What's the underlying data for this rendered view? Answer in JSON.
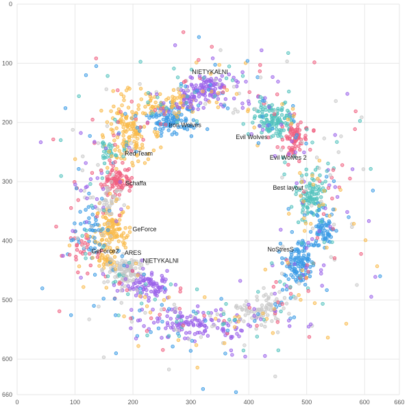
{
  "chart_data": {
    "type": "scatter",
    "title": "",
    "xlabel": "",
    "ylabel": "",
    "xlim": [
      0,
      660
    ],
    "ylim": [
      0,
      660
    ],
    "y_inverted": true,
    "grid": true,
    "x_ticks": [
      "0",
      "100",
      "200",
      "300",
      "400",
      "500",
      "600",
      "660"
    ],
    "y_ticks": [
      "0",
      "100",
      "200",
      "300",
      "400",
      "500",
      "600",
      "660"
    ],
    "colors": {
      "blue": "#3b9be5",
      "teal": "#52c2bd",
      "pink": "#f06080",
      "orange": "#f9bb4d",
      "purple": "#9b63ea",
      "gray": "#c9c9c9"
    },
    "clusters": [
      {
        "label": "NIETYKALNI",
        "color": "purple",
        "x": 330,
        "y": 140,
        "sx": 22,
        "sy": 10,
        "n": 90,
        "label_x": 333,
        "label_y": 118
      },
      {
        "label": "Iron Wolves",
        "color": "blue",
        "x": 270,
        "y": 195,
        "sx": 22,
        "sy": 14,
        "n": 110,
        "label_x": 290,
        "label_y": 208
      },
      {
        "label": "Evil Wolves",
        "color": "teal",
        "x": 440,
        "y": 195,
        "sx": 15,
        "sy": 15,
        "n": 120,
        "label_x": 405,
        "label_y": 228
      },
      {
        "label": "Evil Wolves 2",
        "color": "pink",
        "x": 478,
        "y": 228,
        "sx": 8,
        "sy": 16,
        "n": 70,
        "label_x": 468,
        "label_y": 263
      },
      {
        "label": "Red Team",
        "color": "orange",
        "x": 190,
        "y": 215,
        "sx": 20,
        "sy": 28,
        "n": 130,
        "label_x": 210,
        "label_y": 256
      },
      {
        "label": "Schaffa",
        "color": "pink",
        "x": 175,
        "y": 300,
        "sx": 13,
        "sy": 12,
        "n": 90,
        "label_x": 205,
        "label_y": 306
      },
      {
        "label": "Best layout",
        "color": "teal",
        "x": 505,
        "y": 320,
        "sx": 13,
        "sy": 17,
        "n": 90,
        "label_x": 468,
        "label_y": 314
      },
      {
        "label": "GeForce",
        "color": "orange",
        "x": 165,
        "y": 380,
        "sx": 14,
        "sy": 18,
        "n": 110,
        "label_x": 220,
        "label_y": 384
      },
      {
        "label": "NoStresS",
        "color": "blue",
        "x": 488,
        "y": 440,
        "sx": 14,
        "sy": 20,
        "n": 110,
        "label_x": 455,
        "label_y": 418
      },
      {
        "label": "GeForce2",
        "color": "orange",
        "x": 155,
        "y": 435,
        "sx": 8,
        "sy": 7,
        "n": 30,
        "label_x": 152,
        "label_y": 421
      },
      {
        "label": "ARES",
        "color": "gray",
        "x": 190,
        "y": 450,
        "sx": 16,
        "sy": 12,
        "n": 110,
        "label_x": 200,
        "label_y": 424
      },
      {
        "label": "NIETYKALNI",
        "color": "purple",
        "x": 230,
        "y": 475,
        "sx": 16,
        "sy": 10,
        "n": 80,
        "label_x": 248,
        "label_y": 437
      },
      {
        "label": "",
        "color": "purple",
        "x": 310,
        "y": 540,
        "sx": 45,
        "sy": 12,
        "n": 110,
        "label_x": 0,
        "label_y": 0
      },
      {
        "label": "",
        "color": "gray",
        "x": 420,
        "y": 515,
        "sx": 25,
        "sy": 12,
        "n": 70,
        "label_x": 0,
        "label_y": 0
      },
      {
        "label": "",
        "color": "blue",
        "x": 530,
        "y": 380,
        "sx": 10,
        "sy": 16,
        "n": 60,
        "label_x": 0,
        "label_y": 0
      },
      {
        "label": "",
        "color": "orange",
        "x": 255,
        "y": 165,
        "sx": 25,
        "sy": 12,
        "n": 60,
        "label_x": 0,
        "label_y": 0
      },
      {
        "label": "",
        "color": "teal",
        "x": 160,
        "y": 250,
        "sx": 12,
        "sy": 8,
        "n": 25,
        "label_x": 0,
        "label_y": 0
      },
      {
        "label": "",
        "color": "gray",
        "x": 160,
        "y": 330,
        "sx": 10,
        "sy": 10,
        "n": 30,
        "label_x": 0,
        "label_y": 0
      },
      {
        "label": "",
        "color": "purple",
        "x": 300,
        "y": 160,
        "sx": 15,
        "sy": 10,
        "n": 35,
        "label_x": 0,
        "label_y": 0
      },
      {
        "label": "",
        "color": "blue",
        "x": 130,
        "y": 390,
        "sx": 12,
        "sy": 25,
        "n": 35,
        "label_x": 0,
        "label_y": 0
      },
      {
        "label": "",
        "color": "pink",
        "x": 120,
        "y": 420,
        "sx": 14,
        "sy": 20,
        "n": 25,
        "label_x": 0,
        "label_y": 0
      }
    ]
  }
}
